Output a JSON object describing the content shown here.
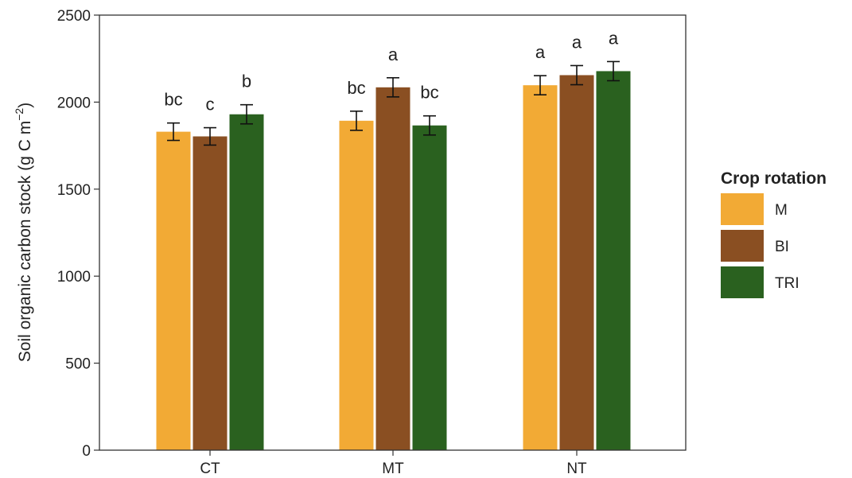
{
  "chart_data": {
    "type": "bar",
    "ylabel_main": "Soil organic carbon stock (g C  m",
    "ylabel_sup": "−2",
    "ylabel_close": ")",
    "xlabel": "",
    "ylim": [
      0,
      2500
    ],
    "yticks": [
      0,
      500,
      1000,
      1500,
      2000,
      2500
    ],
    "grid": false,
    "categories": [
      "CT",
      "MT",
      "NT"
    ],
    "legend": {
      "title": "Crop rotation",
      "position": "right"
    },
    "series": [
      {
        "name": "M",
        "color": "#F2AA35",
        "values": [
          1830,
          1893,
          2097
        ],
        "errors": [
          50,
          55,
          55
        ],
        "labels": [
          "bc",
          "bc",
          "a"
        ]
      },
      {
        "name": "BI",
        "color": "#8A4F22",
        "values": [
          1803,
          2085,
          2155
        ],
        "errors": [
          50,
          55,
          55
        ],
        "labels": [
          "c",
          "a",
          "a"
        ]
      },
      {
        "name": "TRI",
        "color": "#2A611F",
        "values": [
          1930,
          1866,
          2178
        ],
        "errors": [
          55,
          55,
          55
        ],
        "labels": [
          "b",
          "bc",
          "a"
        ]
      }
    ]
  }
}
